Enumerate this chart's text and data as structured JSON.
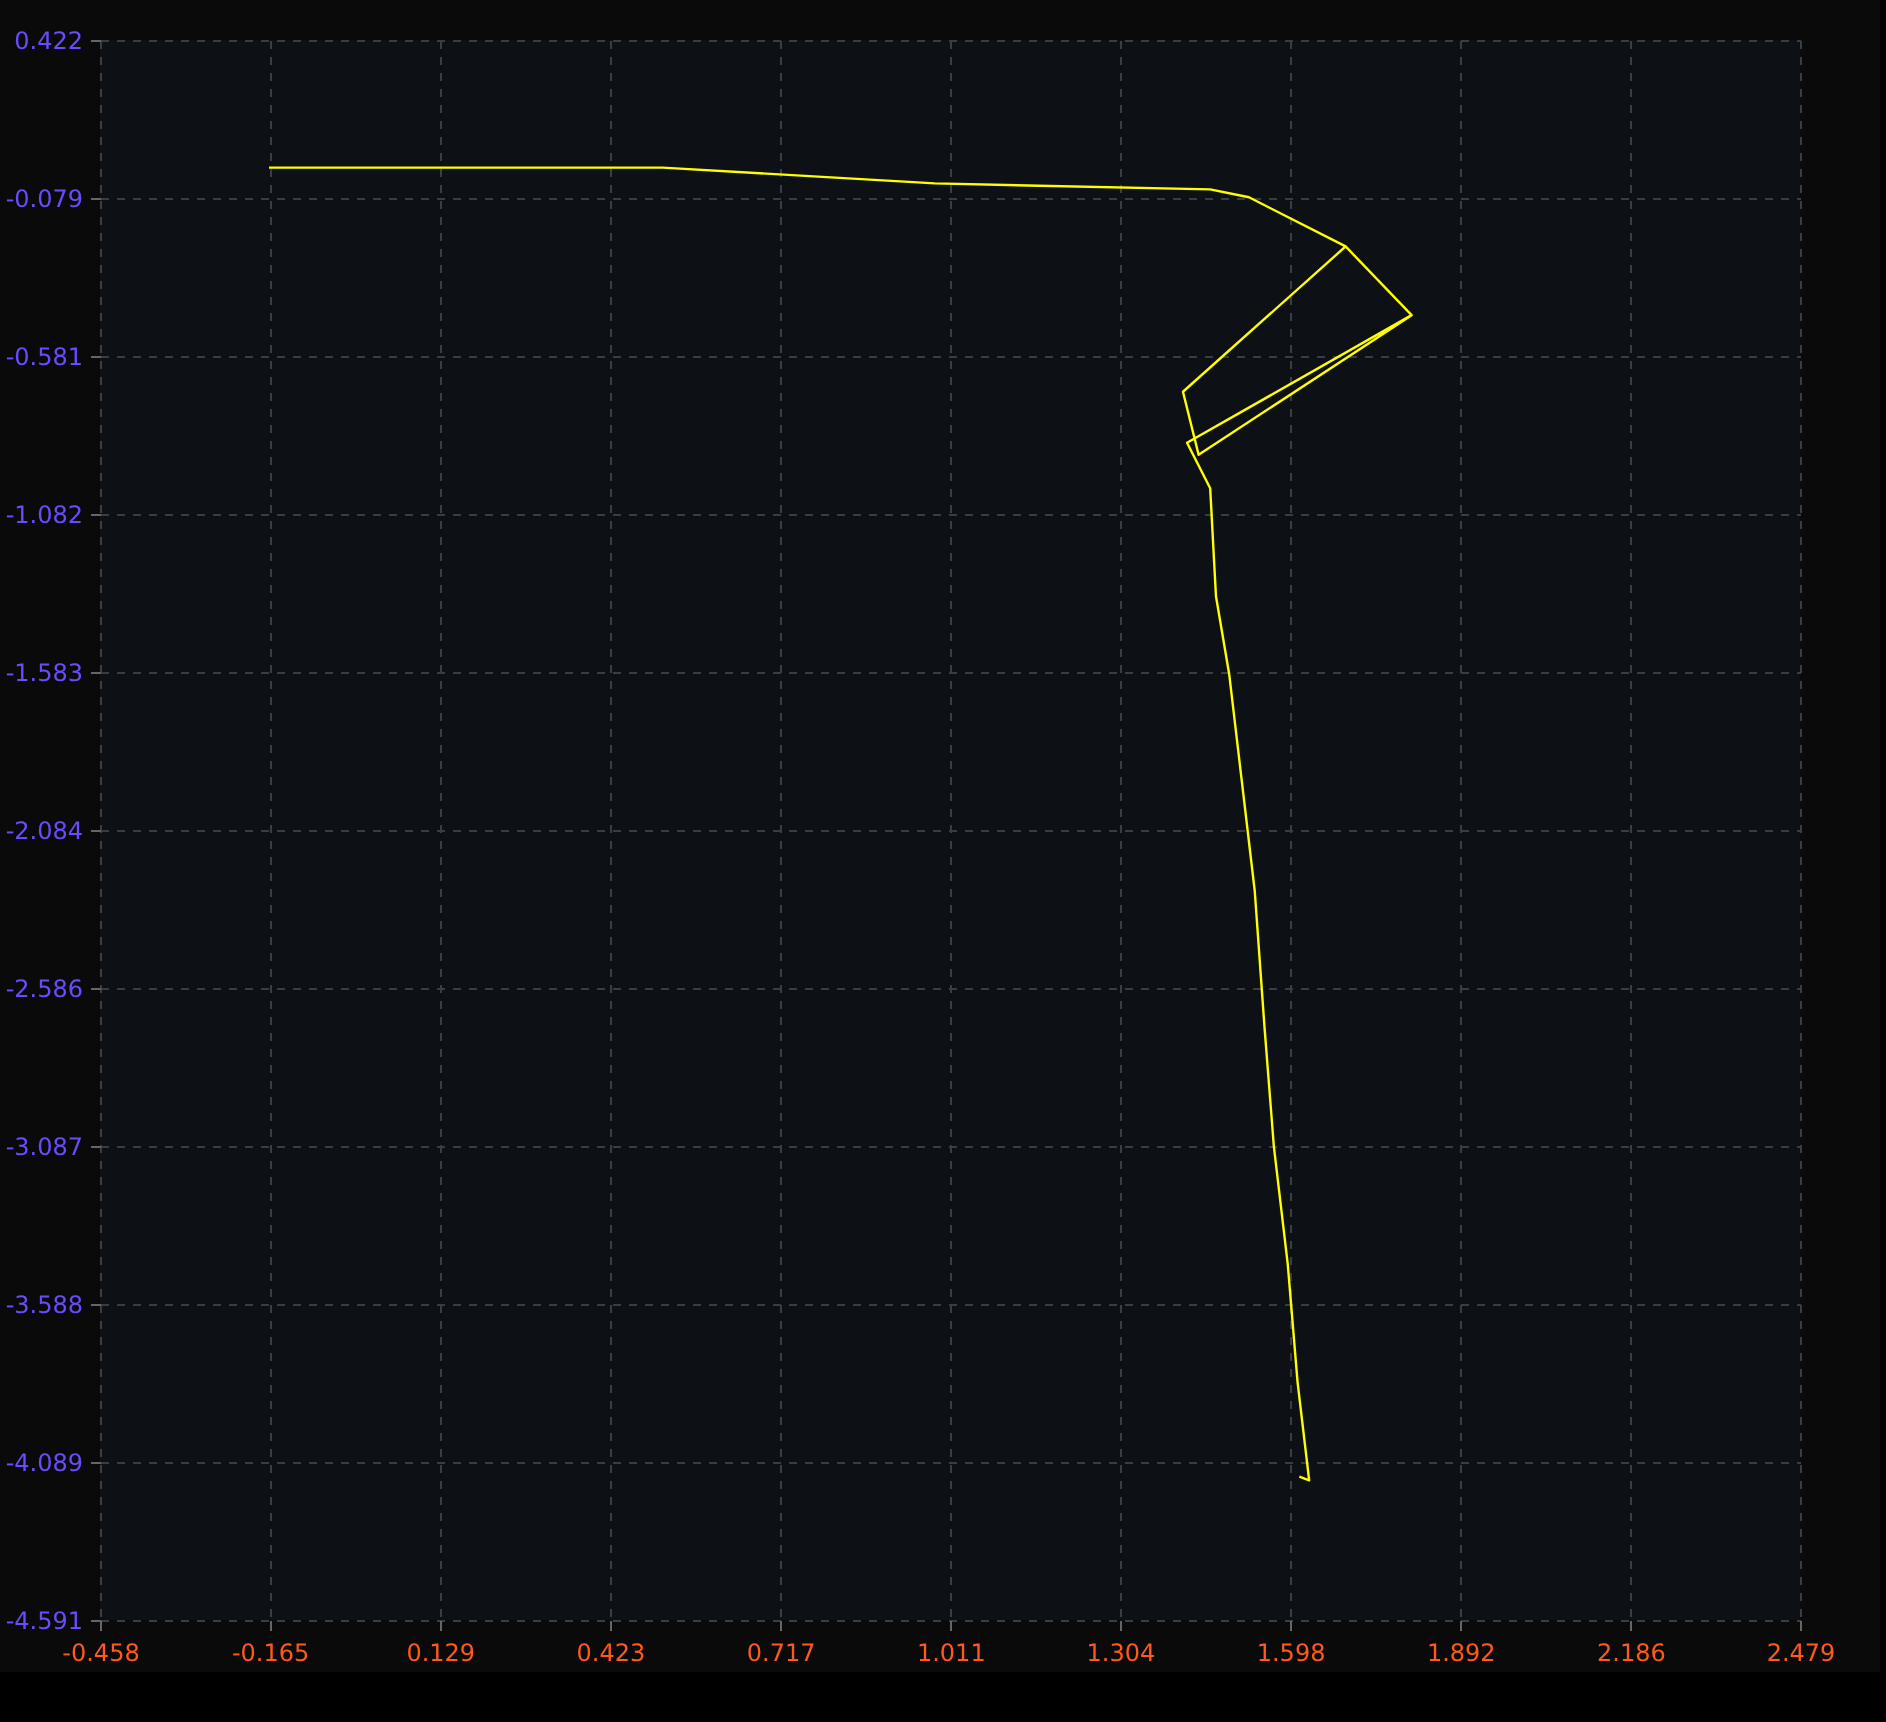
{
  "chart_data": {
    "type": "line",
    "x": [
      -0.166,
      0.514,
      0.984,
      1.46,
      1.527,
      1.694,
      1.413,
      1.44,
      1.808,
      1.694,
      1.808,
      1.42,
      1.46,
      1.47,
      1.493,
      1.513,
      1.537,
      1.554,
      1.57,
      1.594,
      1.611,
      1.631,
      1.614
    ],
    "series": [
      {
        "color": "#ffff00",
        "values": [
          0.017,
          0.017,
          -0.033,
          -0.052,
          -0.077,
          -0.233,
          -0.694,
          -0.894,
          -0.451,
          -0.233,
          -0.451,
          -0.856,
          -1.0,
          -1.343,
          -1.592,
          -1.904,
          -2.278,
          -2.714,
          -3.088,
          -3.462,
          -3.837,
          -4.148,
          -4.136
        ]
      }
    ],
    "xlim": [
      -0.458,
      2.479
    ],
    "ylim": [
      -4.591,
      0.422
    ],
    "xticks": [
      -0.458,
      -0.165,
      0.129,
      0.423,
      0.717,
      1.011,
      1.304,
      1.598,
      1.892,
      2.186,
      2.479
    ],
    "yticks": [
      0.422,
      -0.079,
      -0.581,
      -1.082,
      -1.583,
      -2.084,
      -2.586,
      -3.087,
      -3.588,
      -4.089,
      -4.591
    ],
    "grid": true,
    "marker": "none",
    "line_style": "solid"
  }
}
